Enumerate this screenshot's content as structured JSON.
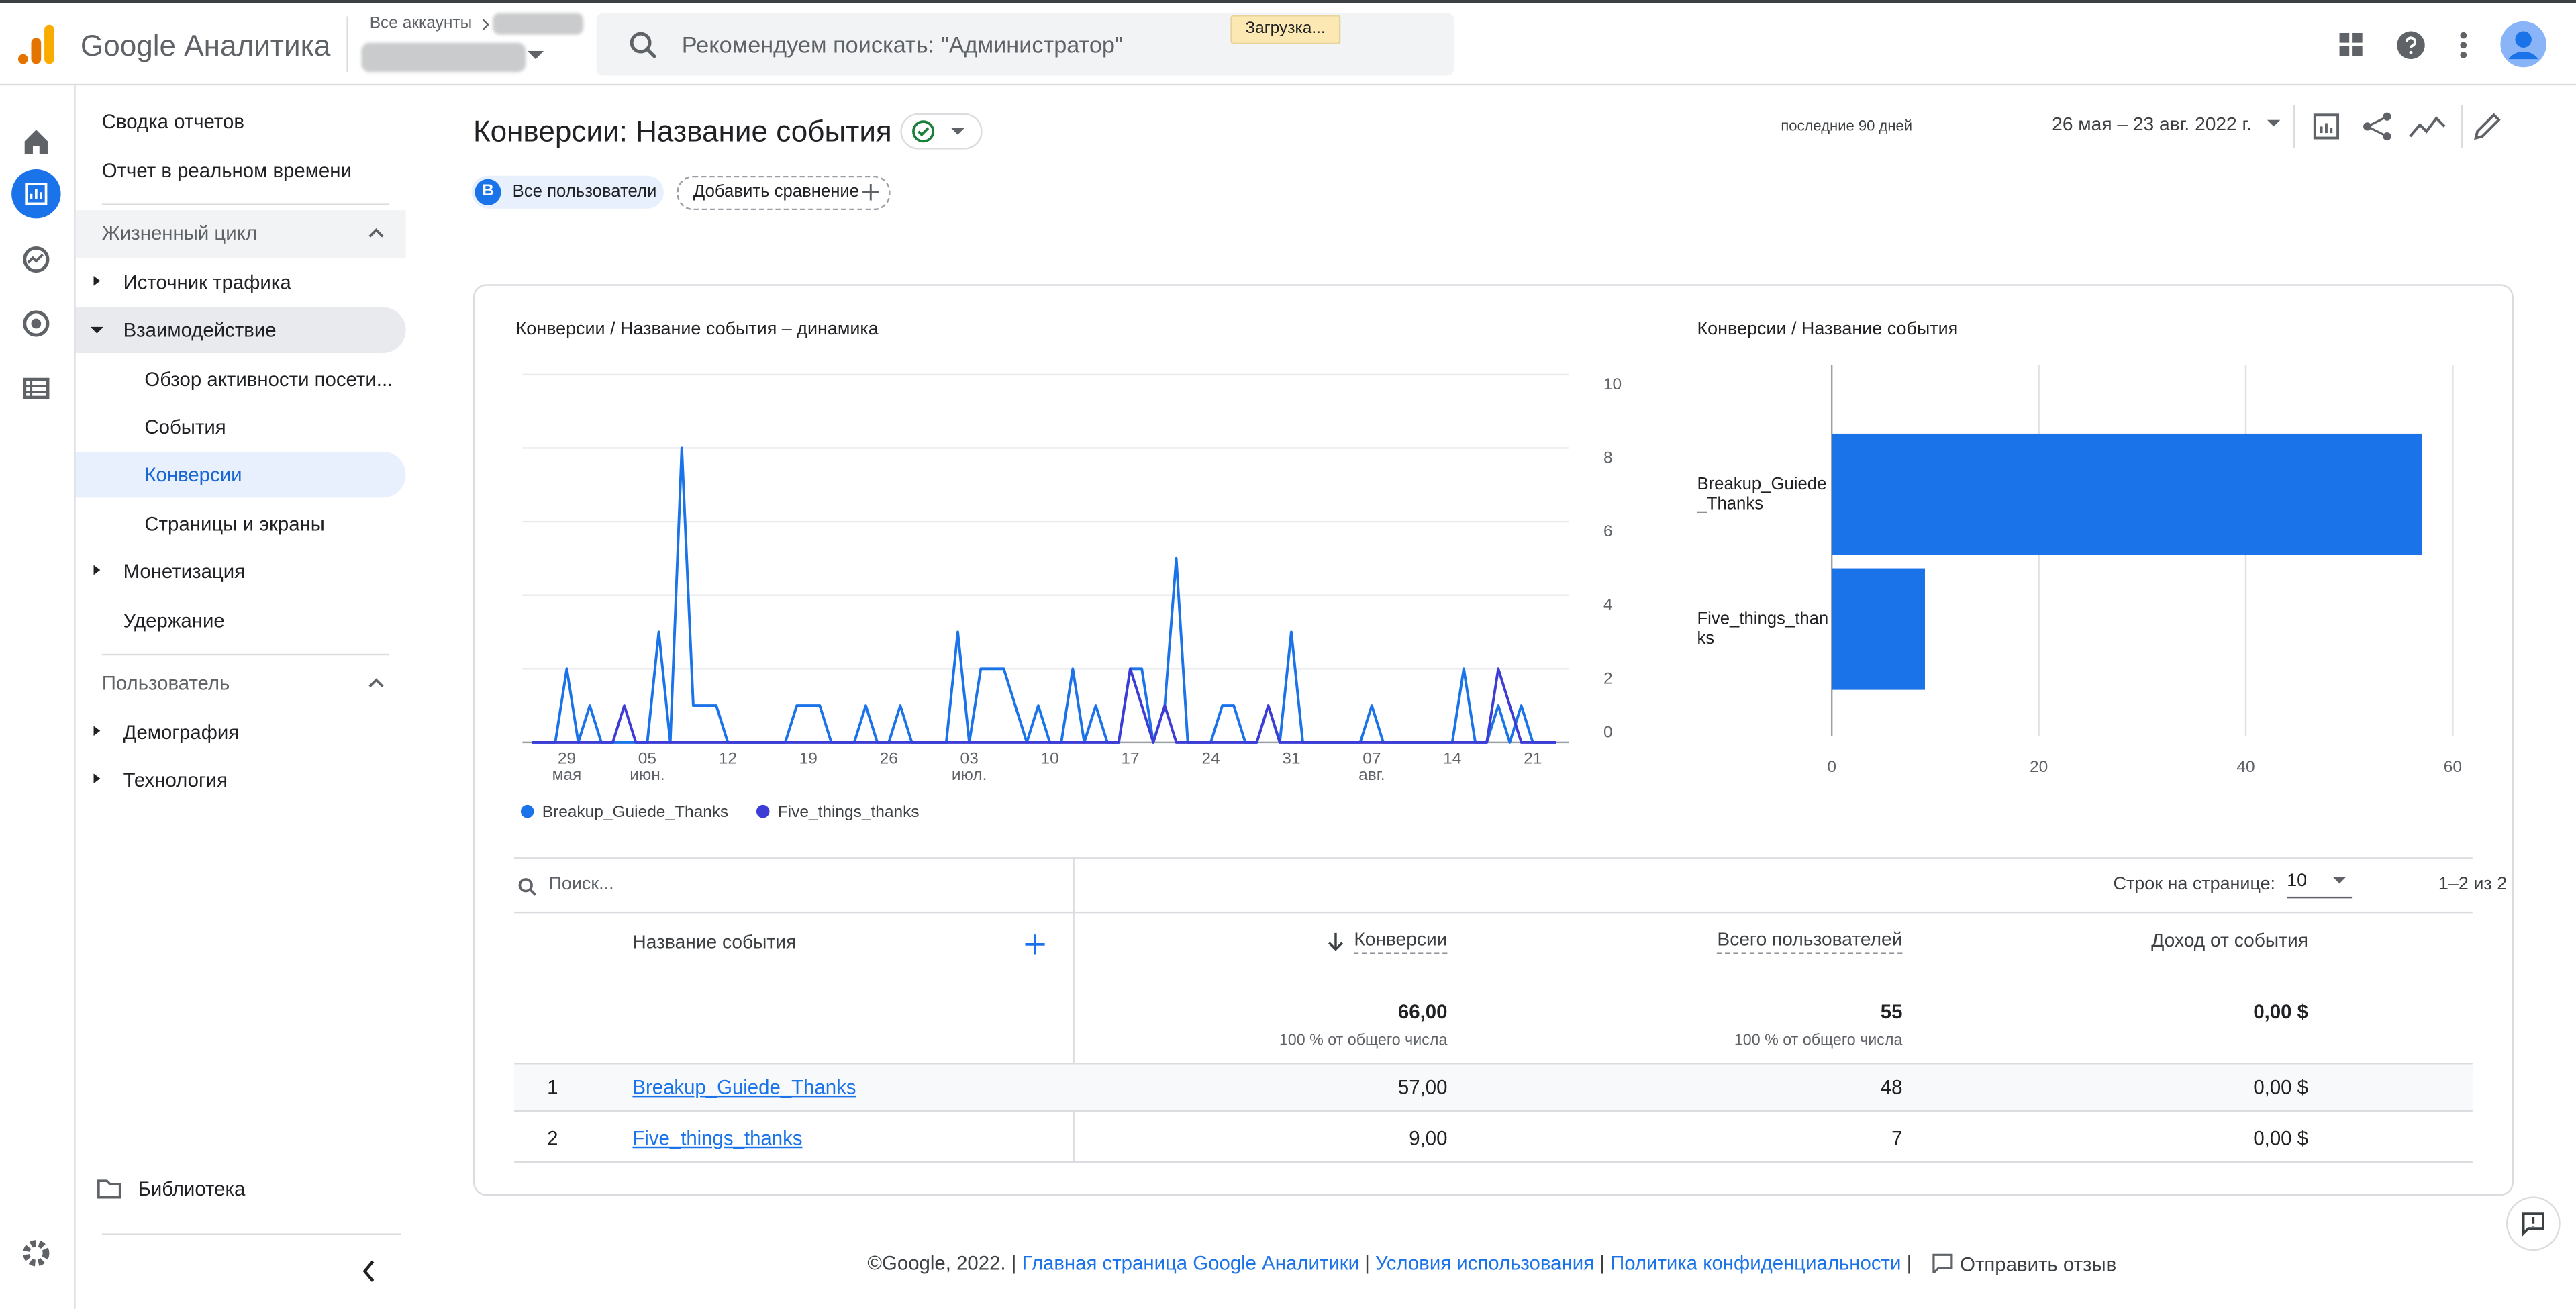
{
  "header": {
    "product": "Google Аналитика",
    "accounts": "Все аккаунты",
    "search": "Рекомендуем поискать: \"Администратор\"",
    "loading": "Загрузка..."
  },
  "nav": {
    "summary": "Сводка отчетов",
    "realtime": "Отчет в реальном времени",
    "lifecycle": {
      "title": "Жизненный цикл",
      "items": [
        "Источник трафика",
        "Взаимодействие",
        "Обзор активности посети...",
        "События",
        "Конверсии",
        "Страницы и экраны",
        "Монетизация",
        "Удержание"
      ]
    },
    "user": {
      "title": "Пользователь",
      "items": [
        "Демография",
        "Технология"
      ]
    },
    "library": "Библиотека"
  },
  "page": {
    "title": "Конверсии: Название события",
    "period_label": "последние 90 дней",
    "date_range": "26 мая – 23 авг. 2022 г.",
    "segment_badge": "В",
    "segment": "Все пользователи",
    "add_comparison": "Добавить сравнение"
  },
  "chart_data": [
    {
      "type": "line",
      "title": "Конверсии / Название события – динамика",
      "categories": [
        null,
        null,
        null,
        "29 мая",
        null,
        null,
        null,
        null,
        null,
        null,
        "05 июн.",
        null,
        null,
        null,
        null,
        null,
        null,
        "12",
        null,
        null,
        null,
        null,
        null,
        null,
        "19",
        null,
        null,
        null,
        null,
        null,
        null,
        "26",
        null,
        null,
        null,
        null,
        null,
        null,
        "03 июл.",
        null,
        null,
        null,
        null,
        null,
        null,
        "10",
        null,
        null,
        null,
        null,
        null,
        null,
        "17",
        null,
        null,
        null,
        null,
        null,
        null,
        "24",
        null,
        null,
        null,
        null,
        null,
        null,
        "31",
        null,
        null,
        null,
        null,
        null,
        null,
        "07 авг.",
        null,
        null,
        null,
        null,
        null,
        null,
        "14",
        null,
        null,
        null,
        null,
        null,
        null,
        "21",
        null,
        null
      ],
      "series": [
        {
          "name": "Breakup_Guiede_Thanks",
          "color": "#1a73e8",
          "values": [
            0,
            0,
            0,
            2,
            0,
            1,
            0,
            0,
            0,
            0,
            0,
            3,
            0,
            8,
            1,
            1,
            1,
            0,
            0,
            0,
            0,
            0,
            0,
            1,
            1,
            1,
            0,
            0,
            0,
            1,
            0,
            0,
            1,
            0,
            0,
            0,
            0,
            3,
            0,
            2,
            2,
            2,
            1,
            0,
            1,
            0,
            0,
            2,
            0,
            1,
            0,
            0,
            2,
            2,
            0,
            1,
            5,
            0,
            0,
            0,
            1,
            1,
            0,
            0,
            1,
            0,
            3,
            0,
            0,
            0,
            0,
            0,
            0,
            1,
            0,
            0,
            0,
            0,
            0,
            0,
            0,
            2,
            0,
            0,
            1,
            0,
            1,
            0,
            0,
            0
          ]
        },
        {
          "name": "Five_things_thanks",
          "color": "#3d3dd6",
          "values": [
            0,
            0,
            0,
            0,
            0,
            0,
            0,
            0,
            1,
            0,
            0,
            0,
            0,
            0,
            0,
            0,
            0,
            0,
            0,
            0,
            0,
            0,
            0,
            0,
            0,
            0,
            0,
            0,
            0,
            0,
            0,
            0,
            0,
            0,
            0,
            0,
            0,
            0,
            0,
            0,
            0,
            0,
            0,
            0,
            0,
            0,
            0,
            0,
            0,
            0,
            0,
            0,
            2,
            1,
            0,
            1,
            0,
            0,
            0,
            0,
            0,
            0,
            0,
            0,
            1,
            0,
            0,
            0,
            0,
            0,
            0,
            0,
            0,
            0,
            0,
            0,
            0,
            0,
            0,
            0,
            0,
            0,
            0,
            0,
            2,
            1,
            0,
            0,
            0,
            0
          ]
        }
      ],
      "ylim": [
        0,
        10
      ],
      "yticks": [
        0,
        2,
        4,
        6,
        8,
        10
      ],
      "grid": true
    },
    {
      "type": "bar",
      "orientation": "horizontal",
      "title": "Конверсии / Название события",
      "categories": [
        "Breakup_Guiede_Thanks",
        "Five_things_thanks"
      ],
      "values": [
        57,
        9
      ],
      "color": "#1a73e8",
      "xlim": [
        0,
        60
      ],
      "xticks": [
        0,
        20,
        40,
        60
      ],
      "grid": true
    }
  ],
  "table": {
    "search": "Поиск...",
    "rows_per_page_label": "Строк на странице:",
    "rows_per_page": "10",
    "pagination": "1–2 из 2",
    "columns": [
      "Название события",
      "Конверсии",
      "Всего пользователей",
      "Доход от события"
    ],
    "totals": [
      "66,00",
      "55",
      "0,00 $"
    ],
    "totals_note": "100 % от общего числа",
    "rows": [
      [
        "1",
        "Breakup_Guiede_Thanks",
        "57,00",
        "48",
        "0,00 $"
      ],
      [
        "2",
        "Five_things_thanks",
        "9,00",
        "7",
        "0,00 $"
      ]
    ]
  },
  "footer": {
    "copyright": "©Google, 2022.",
    "separator": "|",
    "links": [
      "Главная страница Google Аналитики",
      "Условия использования",
      "Политика конфиденциальности"
    ],
    "feedback": "Отправить отзыв"
  }
}
